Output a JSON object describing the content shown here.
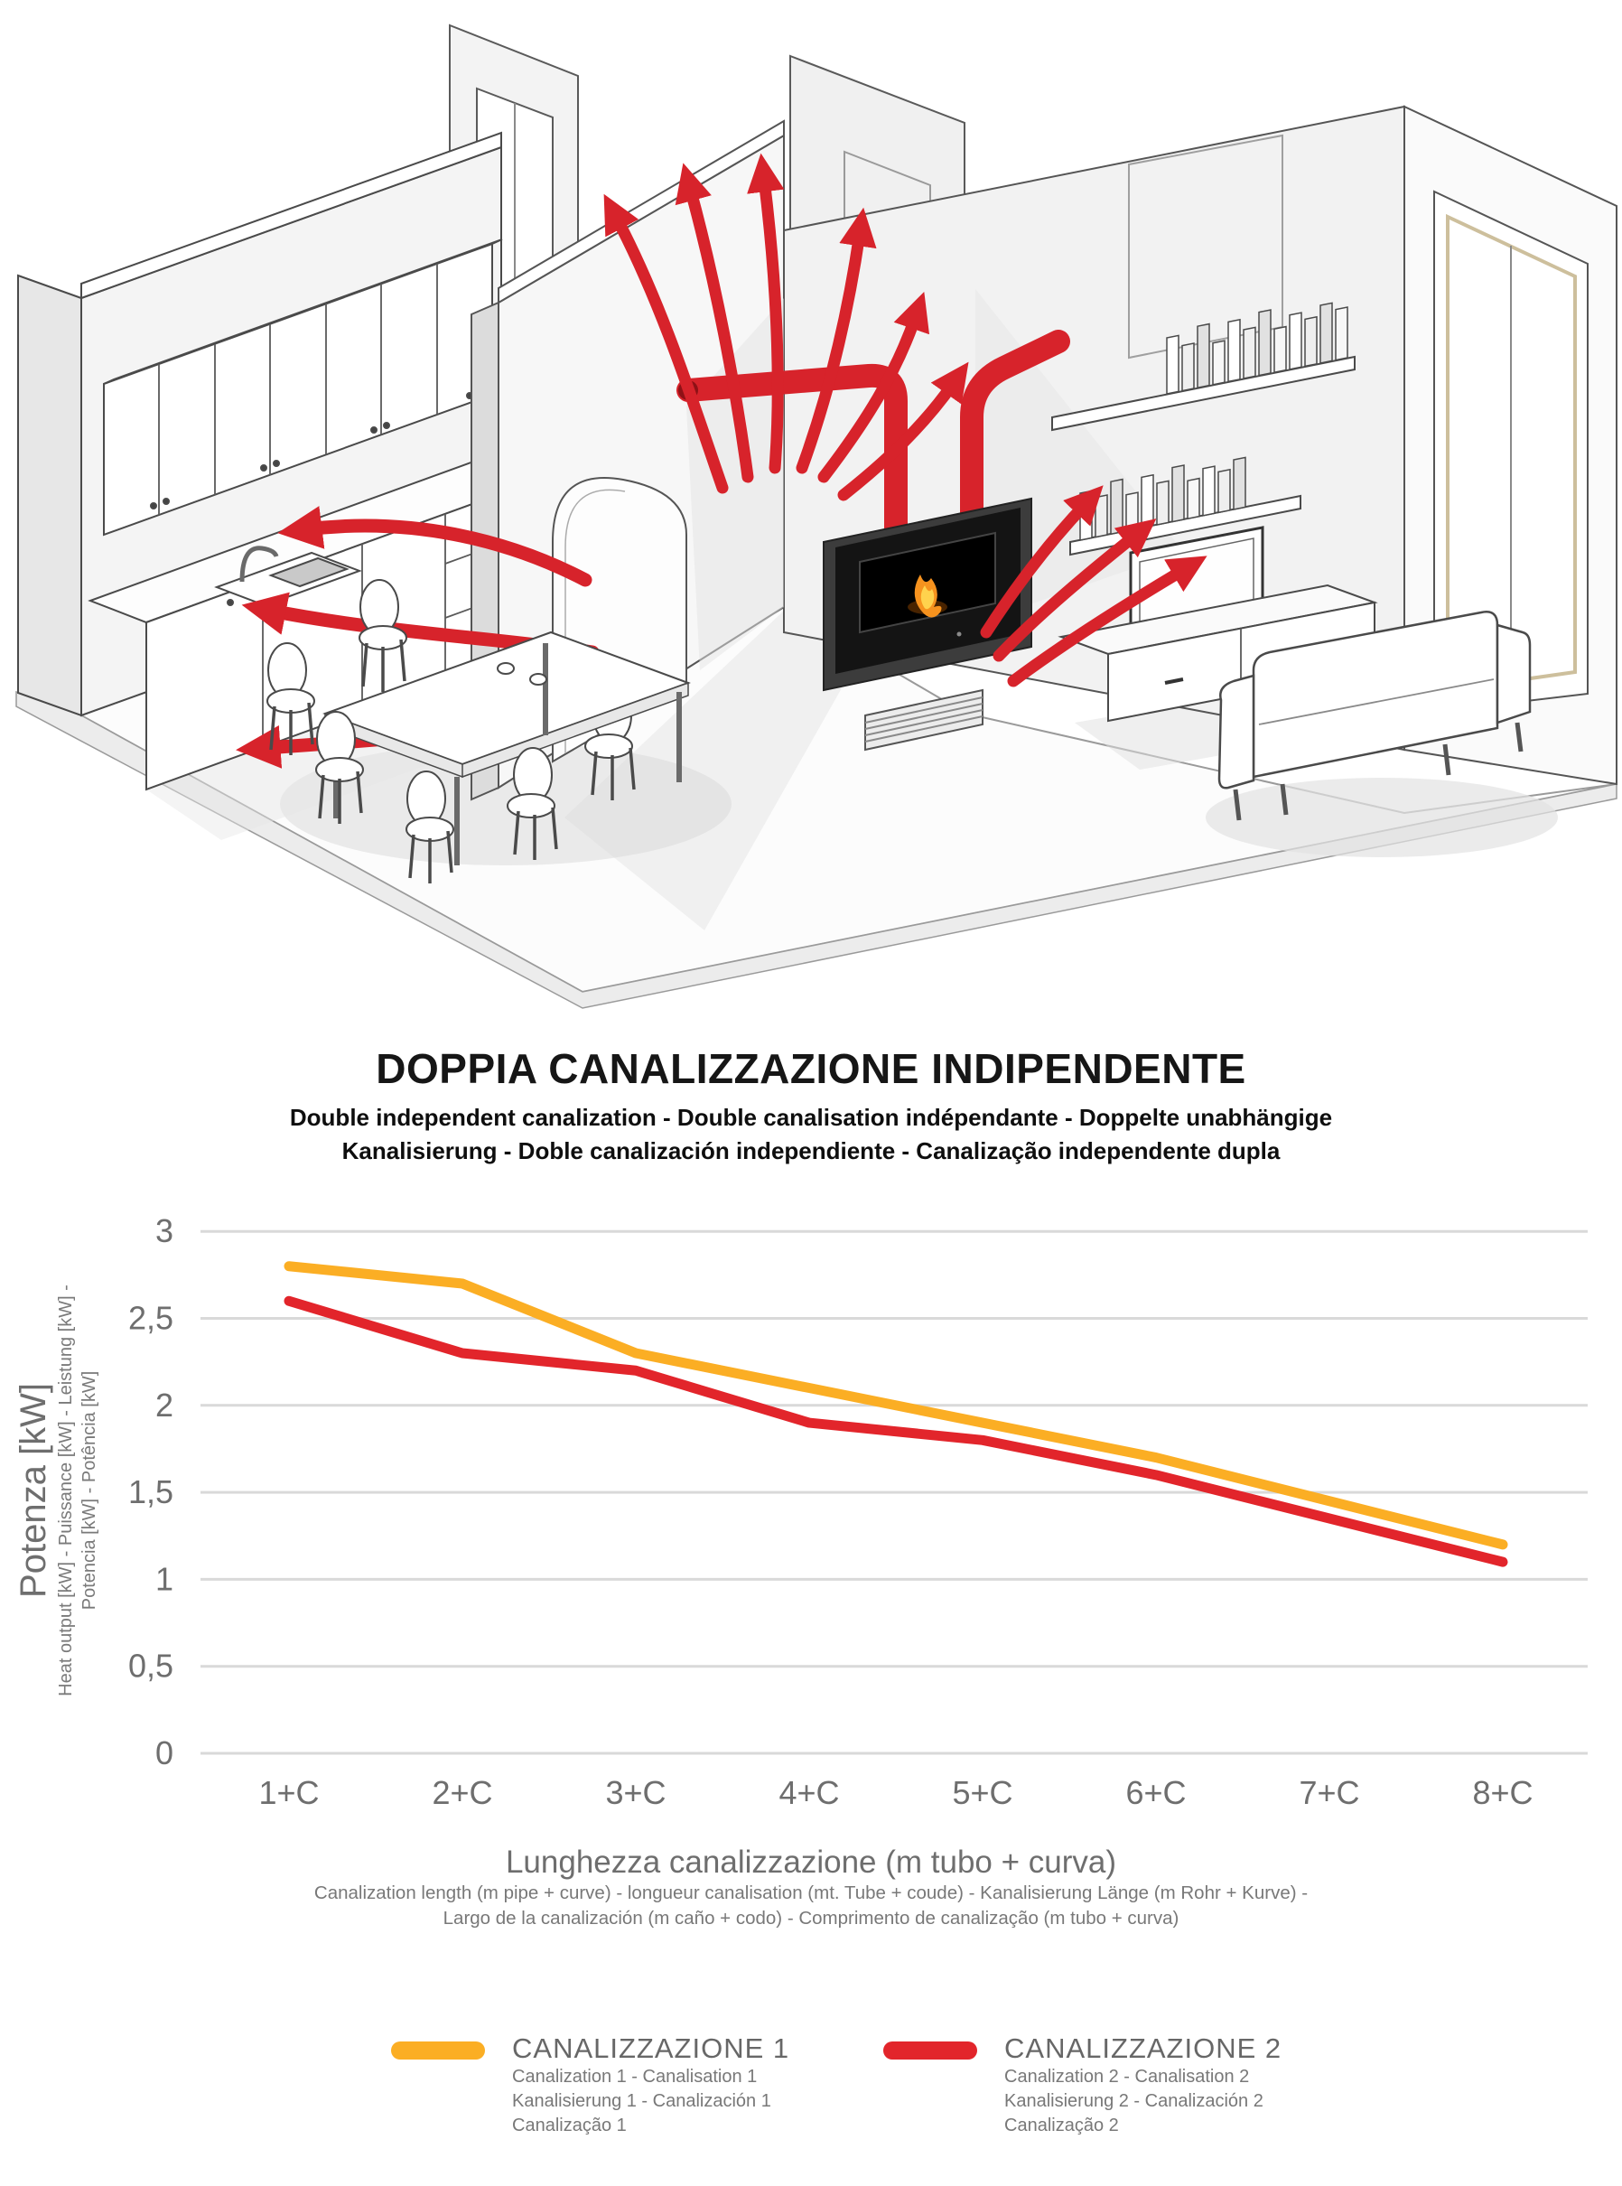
{
  "title_block": {
    "title": "DOPPIA CANALIZZAZIONE INDIPENDENTE",
    "subtitle_line1": "Double independent canalization - Double canalisation indépendante - Doppelte unabhängige",
    "subtitle_line2": "Kanalisierung - Doble canalización independiente - Canalização independente dupla"
  },
  "chart_data": {
    "type": "line",
    "title": "DOPPIA CANALIZZAZIONE INDIPENDENTE",
    "categories": [
      "1+C",
      "2+C",
      "3+C",
      "4+C",
      "5+C",
      "6+C",
      "7+C",
      "8+C"
    ],
    "series": [
      {
        "name": "CANALIZZAZIONE 1",
        "color": "#FBAE24",
        "values": [
          2.8,
          2.7,
          2.3,
          2.1,
          1.9,
          1.7,
          1.45,
          1.2
        ],
        "legend_sublines": [
          "Canalization 1 - Canalisation 1",
          "Kanalisierung 1 - Canalización 1",
          "Canalização 1"
        ]
      },
      {
        "name": "CANALIZZAZIONE 2",
        "color": "#E2252B",
        "values": [
          2.6,
          2.3,
          2.2,
          1.9,
          1.8,
          1.6,
          1.35,
          1.1
        ],
        "legend_sublines": [
          "Canalization 2 - Canalisation 2",
          "Kanalisierung 2 - Canalización 2",
          "Canalização 2"
        ]
      }
    ],
    "xlabel": "Lunghezza canalizzazione (m tubo + curva)",
    "xlabel_sublines": [
      "Canalization length (m pipe + curve) - longueur canalisation (mt. Tube + coude) - Kanalisierung Länge (m Rohr + Kurve) -",
      "Largo de la canalización (m caño + codo) - Comprimento de canalização (m tubo + curva)"
    ],
    "ylabel": "Potenza [kW]",
    "ylabel_sublines": [
      "Heat output [kW] - Puissance [kW] - Leistung [kW] -",
      "Potencia [kW] - Potência [kW]"
    ],
    "ylim": [
      0,
      3
    ],
    "ytick_values": [
      3,
      2.5,
      2,
      1.5,
      1,
      0.5,
      0
    ],
    "ytick_labels": [
      "3",
      "2,5",
      "2",
      "1,5",
      "1",
      "0,5",
      "0"
    ],
    "grid": true,
    "gridline_color": "#D9D9D9",
    "axis_text_color": "#6E6E6E",
    "legend_position": "bottom"
  },
  "illustration": {
    "accent_red": "#D7232B",
    "depicted": [
      "kitchen-cabinets",
      "kitchen-sink",
      "dining-table",
      "chairs",
      "arched-doorway",
      "partition-wall",
      "pellet-stove-insert",
      "air-duct-pipes",
      "hot-air-arrows",
      "bookshelves",
      "tv",
      "media-cabinet",
      "sofa",
      "large-window",
      "upper-room-window"
    ]
  }
}
